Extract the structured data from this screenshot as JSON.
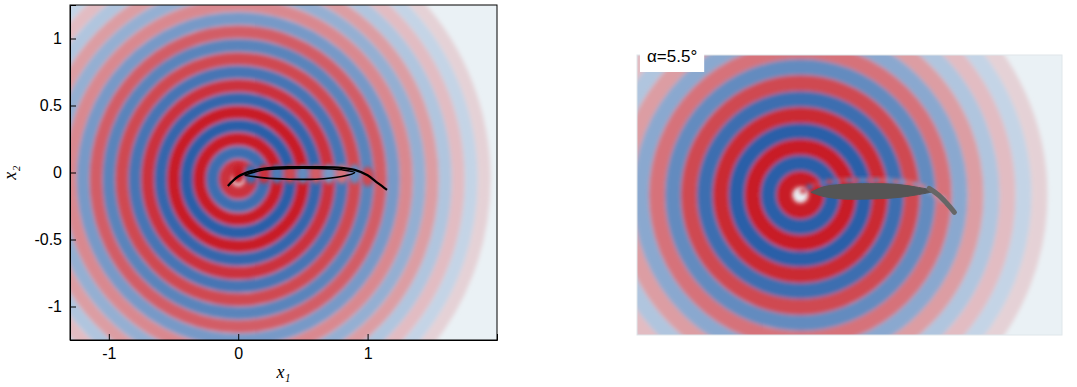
{
  "chart_data": [
    {
      "type": "contour",
      "x_label": "x₁",
      "y_label": "x₂",
      "xlim": [
        -1.3,
        2.0
      ],
      "ylim": [
        -1.25,
        1.25
      ],
      "xticks": [
        -1,
        0,
        1
      ],
      "yticks": [
        -1,
        -0.5,
        0,
        0.5,
        1
      ],
      "clim": [
        -1,
        1
      ],
      "rings": {
        "center": [
          0.0,
          -0.05
        ],
        "radius": [
          0.1,
          0.2,
          0.3,
          0.4,
          0.5,
          0.6,
          0.7,
          0.8,
          0.9,
          1.0,
          1.1,
          1.2,
          1.3,
          1.4,
          1.5,
          1.6,
          1.7,
          1.8,
          1.9
        ],
        "values": [
          0.9,
          -0.9,
          1,
          -1,
          1,
          -0.95,
          0.9,
          -0.85,
          0.8,
          -0.75,
          0.7,
          -0.6,
          0.5,
          -0.45,
          0.4,
          -0.3,
          0.25,
          -0.2,
          0.15
        ]
      },
      "near_field": {
        "x": [
          0.0,
          0.1,
          0.2,
          0.3,
          0.4,
          0.5,
          0.6,
          0.7,
          0.8,
          0.9,
          1.0
        ],
        "y": [
          -0.01,
          -0.01,
          -0.01,
          -0.01,
          -0.01,
          -0.01,
          -0.01,
          -0.01,
          -0.01,
          -0.01,
          -0.03
        ],
        "values": [
          1,
          -0.9,
          0.9,
          -0.8,
          0.8,
          -0.7,
          0.7,
          -0.6,
          0.6,
          -0.7,
          0.8
        ]
      },
      "airfoil": {
        "outline": {
          "x": [
            -0.08,
            0.0,
            0.1,
            0.2,
            0.4,
            0.6,
            0.8,
            0.9,
            1.0,
            1.08,
            1.15
          ],
          "y": [
            -0.1,
            -0.03,
            0.01,
            0.03,
            0.04,
            0.04,
            0.035,
            0.02,
            -0.02,
            -0.08,
            -0.13
          ]
        },
        "body": {
          "x": [
            0.05,
            0.2,
            0.4,
            0.6,
            0.8,
            0.9,
            0.8,
            0.6,
            0.4,
            0.2,
            0.05
          ],
          "y": [
            -0.02,
            0.02,
            0.03,
            0.03,
            0.02,
            0.0,
            -0.03,
            -0.05,
            -0.05,
            -0.04,
            -0.02
          ]
        }
      },
      "grid": false
    },
    {
      "type": "contour",
      "annotation": "α=5.5°",
      "tick_labels": false,
      "xlim": [
        -1.25,
        1.95
      ],
      "ylim": [
        -1.05,
        1.05
      ],
      "clim": [
        -1,
        1
      ],
      "rings": {
        "center": [
          -0.02,
          0.0
        ],
        "radius": [
          0.12,
          0.24,
          0.36,
          0.48,
          0.6,
          0.72,
          0.84,
          0.96,
          1.08,
          1.2,
          1.32,
          1.44,
          1.56,
          1.68,
          1.8
        ],
        "values": [
          1,
          -1,
          1,
          -1,
          0.95,
          -0.9,
          0.8,
          -0.7,
          0.6,
          -0.5,
          0.4,
          -0.3,
          0.25,
          -0.2,
          0.15
        ]
      },
      "near_field": {
        "x": [
          0.0,
          0.05,
          0.1,
          0.15,
          0.2,
          0.25,
          0.3,
          0.35,
          0.4,
          0.45,
          0.5,
          0.55,
          0.6,
          0.65,
          0.7,
          0.75,
          0.8,
          0.85,
          0.9,
          0.95,
          1.0,
          1.05
        ],
        "y": [
          0.03,
          0.06,
          0.08,
          0.09,
          0.1,
          0.1,
          0.11,
          0.11,
          0.11,
          0.11,
          0.11,
          0.11,
          0.11,
          0.11,
          0.1,
          0.1,
          0.09,
          0.08,
          0.06,
          0.03,
          0.0,
          -0.03
        ],
        "values": [
          0.9,
          -0.9,
          0.85,
          -0.85,
          0.8,
          -0.8,
          0.8,
          -0.75,
          0.75,
          -0.7,
          0.7,
          -0.7,
          0.65,
          -0.65,
          0.6,
          -0.6,
          0.6,
          -0.55,
          0.55,
          -0.5,
          0.5,
          -0.45
        ]
      },
      "airfoil": {
        "body": {
          "x": [
            0.06,
            0.15,
            0.3,
            0.5,
            0.7,
            0.85,
            0.98,
            0.85,
            0.7,
            0.5,
            0.3,
            0.15,
            0.06
          ],
          "y": [
            0.02,
            0.06,
            0.08,
            0.085,
            0.08,
            0.06,
            0.03,
            0.0,
            -0.02,
            -0.03,
            -0.03,
            -0.01,
            0.02
          ]
        },
        "flap": {
          "x": [
            0.95,
            1.02,
            1.08,
            1.14
          ],
          "y": [
            0.05,
            0.0,
            -0.06,
            -0.13
          ]
        }
      },
      "grid": false
    }
  ]
}
